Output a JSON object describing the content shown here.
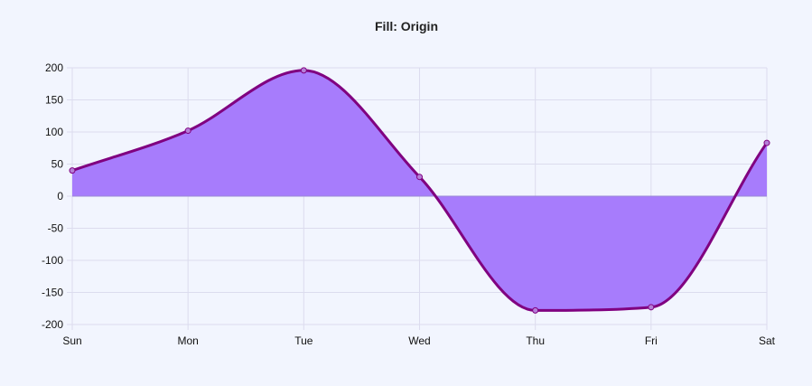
{
  "chart_data": {
    "type": "area",
    "title": "Fill: Origin",
    "xlabel": "",
    "ylabel": "",
    "categories": [
      "Sun",
      "Mon",
      "Tue",
      "Wed",
      "Thu",
      "Fri",
      "Sat"
    ],
    "series": [
      {
        "values": [
          40,
          102,
          196,
          30,
          -178,
          -173,
          83
        ]
      }
    ],
    "ylim": [
      -200,
      200
    ],
    "yticks": [
      200,
      150,
      100,
      50,
      0,
      -50,
      -100,
      -150,
      -200
    ],
    "fill": "origin",
    "grid": true,
    "colors": {
      "line": "#800080",
      "fill": "#a77cfc",
      "grid": "#dcdcee",
      "zero_line": "#9b89d6"
    }
  }
}
